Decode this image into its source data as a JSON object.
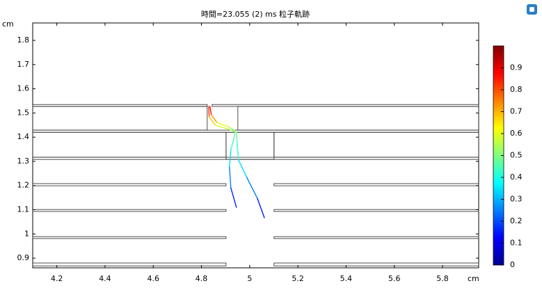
{
  "chart_data": {
    "type": "trajectory",
    "title": "時間=23.055 (2) ms  粒子軌跡",
    "x_label": "cm",
    "y_label": "cm",
    "xlim": [
      4.1,
      5.95
    ],
    "xticks": [
      4.2,
      4.4,
      4.6,
      4.8,
      5,
      5.2,
      5.4,
      5.6,
      5.8
    ],
    "ylim": [
      0.86,
      1.872
    ],
    "yticks": [
      0.9,
      1,
      1.1,
      1.2,
      1.3,
      1.4,
      1.5,
      1.6,
      1.7,
      1.8
    ],
    "clim": [
      0,
      1
    ],
    "cticks": [
      0,
      0.1,
      0.2,
      0.3,
      0.4,
      0.5,
      0.6,
      0.7,
      0.8,
      0.9
    ],
    "colormap": "jet",
    "geometry": [
      {
        "x": [
          4.1,
          4.824
        ],
        "y": [
          1.527,
          1.535
        ]
      },
      {
        "x": [
          4.844,
          5.95
        ],
        "y": [
          1.527,
          1.535
        ]
      },
      {
        "x": [
          4.1,
          4.824
        ],
        "y": [
          1.429,
          1.527
        ]
      },
      {
        "x": [
          4.951,
          5.95
        ],
        "y": [
          1.429,
          1.527
        ]
      },
      {
        "x": [
          4.1,
          5.95
        ],
        "y": [
          1.42,
          1.429
        ]
      },
      {
        "x": [
          4.1,
          4.902
        ],
        "y": [
          1.317,
          1.42
        ]
      },
      {
        "x": [
          5.101,
          5.95
        ],
        "y": [
          1.317,
          1.42
        ]
      },
      {
        "x": [
          4.902,
          5.101
        ],
        "y": [
          1.308,
          1.42
        ]
      },
      {
        "x": [
          4.1,
          5.95
        ],
        "y": [
          1.308,
          1.317
        ]
      },
      {
        "x": [
          4.1,
          4.902
        ],
        "y": [
          1.199,
          1.208
        ]
      },
      {
        "x": [
          5.101,
          5.95
        ],
        "y": [
          1.199,
          1.208
        ]
      },
      {
        "x": [
          4.1,
          4.902
        ],
        "y": [
          1.093,
          1.101
        ]
      },
      {
        "x": [
          5.101,
          5.95
        ],
        "y": [
          1.093,
          1.101
        ]
      },
      {
        "x": [
          4.1,
          4.902
        ],
        "y": [
          0.981,
          0.989
        ]
      },
      {
        "x": [
          5.101,
          5.95
        ],
        "y": [
          0.981,
          0.989
        ]
      },
      {
        "x": [
          4.1,
          4.902
        ],
        "y": [
          0.868,
          0.88
        ]
      },
      {
        "x": [
          5.101,
          5.95
        ],
        "y": [
          0.868,
          0.88
        ]
      }
    ],
    "series": [
      {
        "x": [
          4.835,
          4.841,
          4.864,
          4.916,
          4.939,
          4.934,
          4.922,
          4.916,
          4.922,
          4.945
        ],
        "values": [
          1.527,
          1.492,
          1.461,
          1.441,
          1.426,
          1.392,
          1.349,
          1.277,
          1.19,
          1.11
        ],
        "c": [
          0.95,
          0.8,
          0.65,
          0.55,
          0.5,
          0.45,
          0.4,
          0.3,
          0.2,
          0.12
        ]
      },
      {
        "x": [
          4.83,
          4.832,
          4.858,
          4.916,
          4.945,
          4.948,
          4.954,
          4.988,
          5.032,
          5.061
        ],
        "values": [
          1.527,
          1.484,
          1.449,
          1.432,
          1.42,
          1.377,
          1.305,
          1.234,
          1.147,
          1.067
        ],
        "c": [
          0.9,
          0.75,
          0.62,
          0.55,
          0.5,
          0.45,
          0.38,
          0.3,
          0.2,
          0.1
        ]
      }
    ]
  }
}
